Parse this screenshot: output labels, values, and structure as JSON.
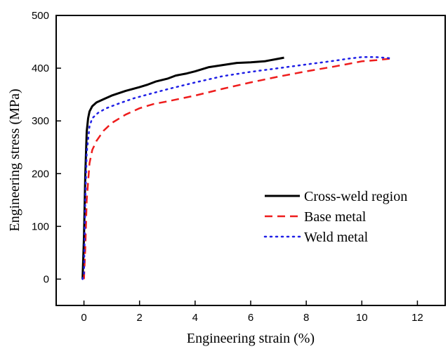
{
  "chart_data": {
    "type": "line",
    "title": "",
    "xlabel": "Engineering strain (%)",
    "ylabel": "Engineering stress (MPa)",
    "xlim": [
      -1,
      13
    ],
    "ylim": [
      -50,
      500
    ],
    "xticks": [
      0,
      2,
      4,
      6,
      8,
      10,
      12
    ],
    "yticks": [
      0,
      100,
      200,
      300,
      400,
      500
    ],
    "grid": false,
    "legend_position": "center-right",
    "series": [
      {
        "name": "Cross-weld region",
        "color": "#000000",
        "style": "solid",
        "x": [
          -0.05,
          0.0,
          0.05,
          0.1,
          0.15,
          0.2,
          0.3,
          0.45,
          0.7,
          1.0,
          1.5,
          2.0,
          2.3,
          2.6,
          3.0,
          3.3,
          3.7,
          4.0,
          4.5,
          5.0,
          5.5,
          6.0,
          6.5,
          7.0,
          7.2
        ],
        "y": [
          0,
          80,
          200,
          280,
          305,
          318,
          328,
          335,
          341,
          348,
          357,
          364,
          369,
          375,
          380,
          386,
          390,
          394,
          402,
          406,
          410,
          411,
          413,
          418,
          420
        ]
      },
      {
        "name": "Base metal",
        "color": "#ee1c1c",
        "style": "dashed",
        "x": [
          0.0,
          0.05,
          0.1,
          0.2,
          0.3,
          0.45,
          0.7,
          1.0,
          1.5,
          2.0,
          2.5,
          3.0,
          4.0,
          5.0,
          6.0,
          7.0,
          8.0,
          9.0,
          9.5,
          10.0,
          10.5,
          11.0
        ],
        "y": [
          0,
          60,
          150,
          220,
          245,
          262,
          281,
          296,
          312,
          324,
          332,
          337,
          348,
          361,
          373,
          384,
          394,
          403,
          408,
          413,
          415,
          418
        ]
      },
      {
        "name": "Weld metal",
        "color": "#1f1fe6",
        "style": "dotted",
        "x": [
          -0.05,
          0.0,
          0.05,
          0.1,
          0.2,
          0.3,
          0.5,
          0.8,
          1.2,
          1.8,
          2.5,
          3.0,
          4.0,
          5.0,
          6.0,
          7.0,
          8.0,
          9.0,
          9.5,
          10.0,
          10.5,
          11.0
        ],
        "y": [
          0,
          10,
          150,
          240,
          290,
          305,
          315,
          324,
          332,
          343,
          353,
          360,
          373,
          385,
          393,
          400,
          407,
          414,
          418,
          421,
          421,
          419
        ]
      }
    ]
  }
}
